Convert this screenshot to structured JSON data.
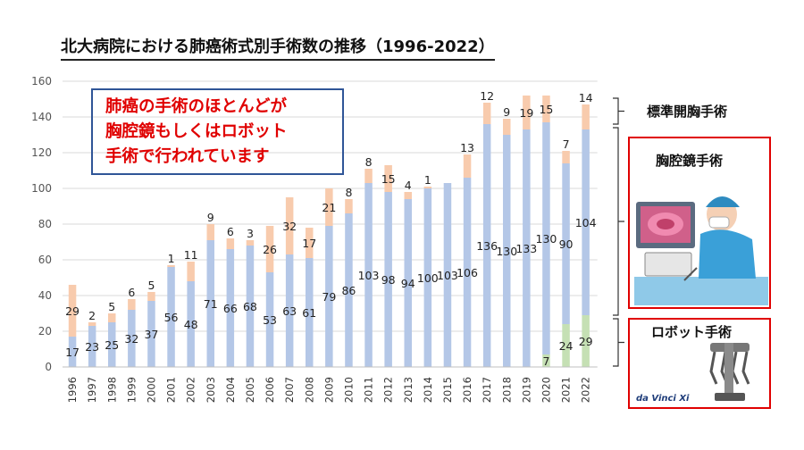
{
  "chart_data": {
    "type": "bar",
    "stacked": true,
    "title": "北大病院における肺癌術式別手術数の推移（1996-2022）",
    "categories": [
      "1996",
      "1997",
      "1998",
      "1999",
      "2000",
      "2001",
      "2002",
      "2003",
      "2004",
      "2005",
      "2006",
      "2007",
      "2008",
      "2009",
      "2010",
      "2011",
      "2012",
      "2013",
      "2014",
      "2015",
      "2016",
      "2017",
      "2018",
      "2019",
      "2020",
      "2021",
      "2022"
    ],
    "series": [
      {
        "name": "ロボット手術",
        "values": [
          0,
          0,
          0,
          0,
          0,
          0,
          0,
          0,
          0,
          0,
          0,
          0,
          0,
          0,
          0,
          0,
          0,
          0,
          0,
          0,
          0,
          0,
          0,
          0,
          7,
          24,
          29
        ]
      },
      {
        "name": "胸腔鏡手術",
        "values": [
          17,
          23,
          25,
          32,
          37,
          56,
          48,
          71,
          66,
          68,
          53,
          63,
          61,
          79,
          86,
          103,
          98,
          94,
          100,
          103,
          106,
          136,
          130,
          133,
          130,
          90,
          104
        ]
      },
      {
        "name": "標準開胸手術",
        "values": [
          29,
          2,
          5,
          6,
          5,
          1,
          11,
          9,
          6,
          3,
          26,
          32,
          17,
          21,
          8,
          8,
          15,
          4,
          1,
          0,
          13,
          12,
          9,
          19,
          15,
          7,
          14
        ]
      }
    ],
    "colors": {
      "robot": "#c5e0b4",
      "vats": "#b4c7e7",
      "open": "#f8cbad",
      "bracket": "#333333"
    },
    "ylim": [
      0,
      160
    ],
    "yticks": [
      0,
      20,
      40,
      60,
      80,
      100,
      120,
      140,
      160
    ],
    "grid": true,
    "annotation_lines": [
      "肺癌の手術のほとんどが",
      "胸腔鏡もしくはロボット",
      "手術で行われています"
    ],
    "bracket_labels": {
      "open": "標準開胸手術",
      "vats": "胸腔鏡手術",
      "robot": "ロボット手術"
    },
    "robot_logo_text": "da Vinci Xi"
  }
}
